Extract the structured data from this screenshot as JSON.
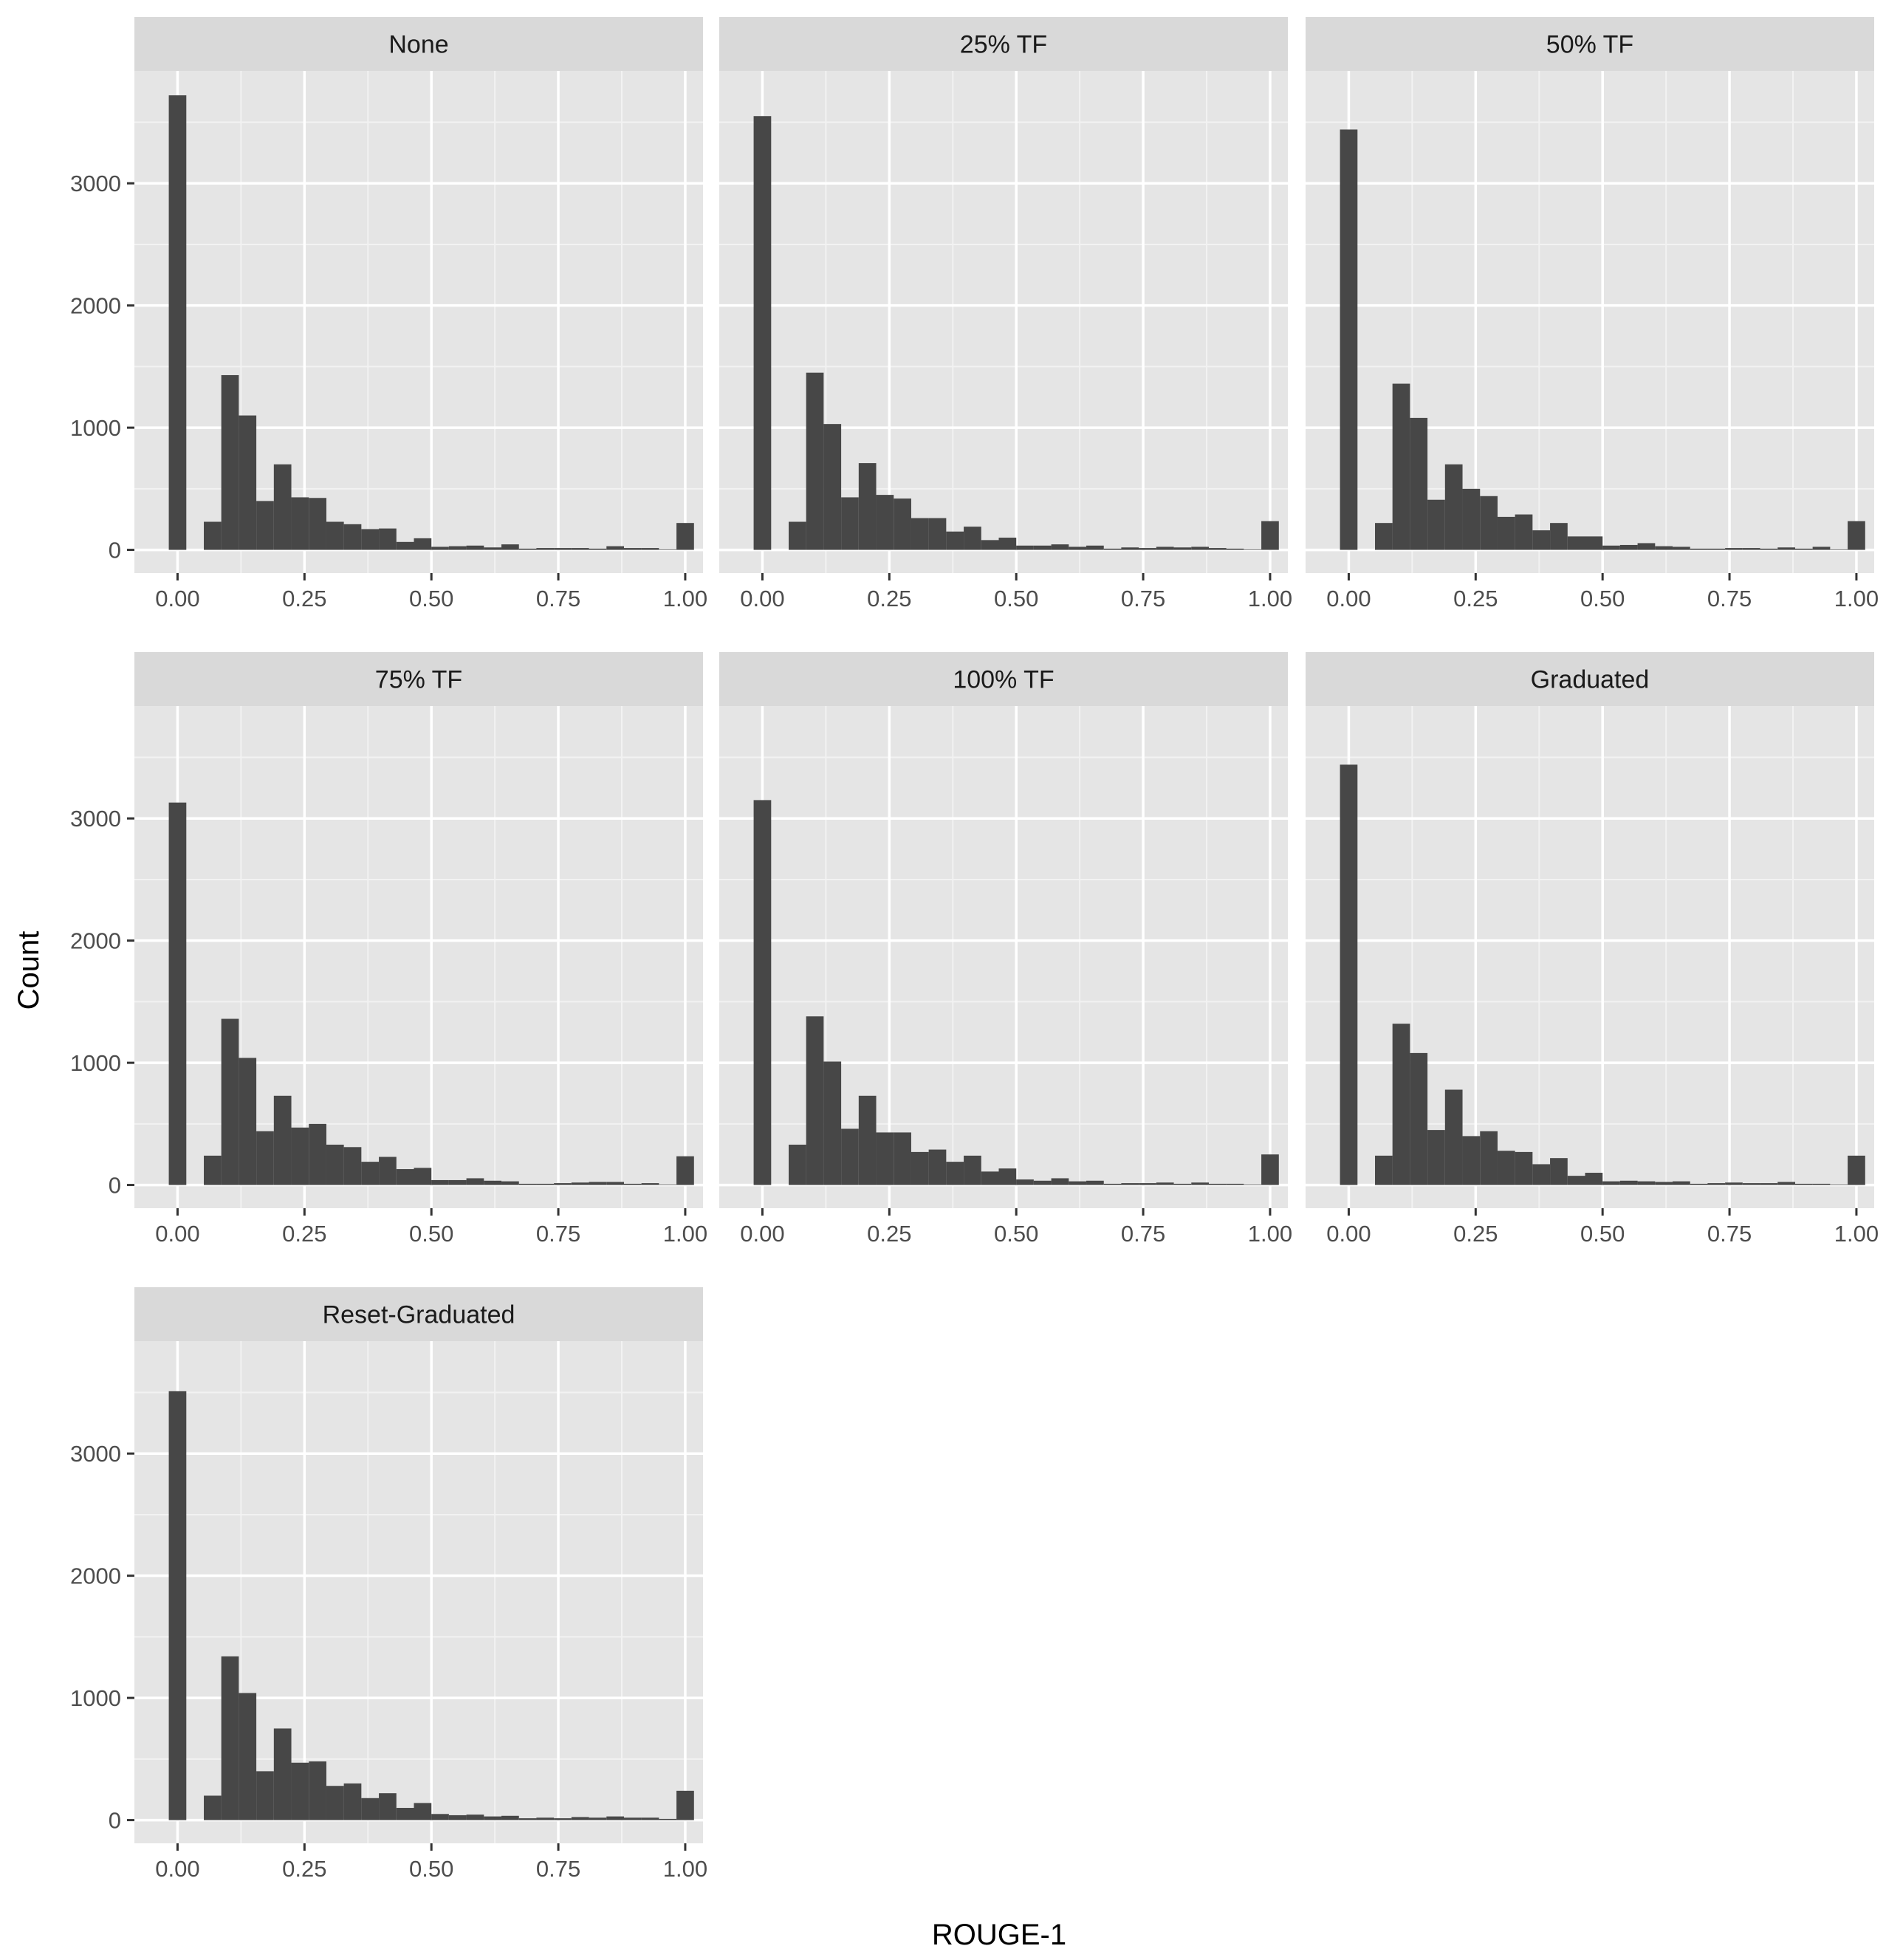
{
  "chart_data": {
    "type": "bar",
    "xlabel": "ROUGE-1",
    "ylabel": "Count",
    "x_ticks": [
      0.0,
      0.25,
      0.5,
      0.75,
      1.0
    ],
    "x_tick_labels": [
      "0.00",
      "0.25",
      "0.50",
      "0.75",
      "1.00"
    ],
    "y_ticks": [
      0,
      1000,
      2000,
      3000
    ],
    "y_tick_labels": [
      "0",
      "1000",
      "2000",
      "3000"
    ],
    "xlim": [
      -0.085,
      1.035
    ],
    "ylim": [
      -190,
      3920
    ],
    "bin_width": 0.0345,
    "bin_centers": [
      0.0,
      0.0345,
      0.069,
      0.1034,
      0.1379,
      0.1724,
      0.2069,
      0.2414,
      0.2759,
      0.3103,
      0.3448,
      0.3793,
      0.4138,
      0.4483,
      0.4828,
      0.5172,
      0.5517,
      0.5862,
      0.6207,
      0.6552,
      0.6897,
      0.7241,
      0.7586,
      0.7931,
      0.8276,
      0.8621,
      0.8966,
      0.931,
      0.9655,
      1.0
    ],
    "grid": true,
    "bar_color": "#474747",
    "panel_bg": "#e5e5e5",
    "strip_bg": "#d9d9d9",
    "panels": [
      {
        "title": "None",
        "values": [
          3720,
          0,
          230,
          1430,
          1100,
          400,
          700,
          430,
          425,
          230,
          210,
          170,
          175,
          65,
          95,
          25,
          30,
          35,
          20,
          45,
          10,
          15,
          15,
          15,
          10,
          30,
          15,
          15,
          5,
          220
        ]
      },
      {
        "title": "25% TF",
        "values": [
          3550,
          0,
          230,
          1450,
          1030,
          430,
          710,
          450,
          420,
          260,
          260,
          150,
          190,
          80,
          100,
          35,
          35,
          45,
          25,
          35,
          10,
          20,
          15,
          25,
          20,
          25,
          15,
          10,
          5,
          235
        ]
      },
      {
        "title": "50% TF",
        "values": [
          3440,
          0,
          220,
          1360,
          1080,
          410,
          700,
          500,
          440,
          270,
          290,
          160,
          220,
          110,
          110,
          35,
          40,
          55,
          30,
          25,
          10,
          10,
          15,
          15,
          10,
          20,
          10,
          25,
          5,
          235
        ]
      },
      {
        "title": "75% TF",
        "values": [
          3130,
          0,
          240,
          1360,
          1040,
          440,
          730,
          470,
          500,
          330,
          310,
          190,
          230,
          130,
          140,
          40,
          40,
          55,
          35,
          30,
          10,
          10,
          15,
          20,
          25,
          25,
          10,
          15,
          5,
          235
        ]
      },
      {
        "title": "100% TF",
        "values": [
          3150,
          0,
          330,
          1380,
          1010,
          460,
          730,
          430,
          430,
          270,
          290,
          190,
          240,
          110,
          135,
          45,
          35,
          55,
          30,
          35,
          10,
          15,
          15,
          20,
          10,
          20,
          10,
          10,
          5,
          250
        ]
      },
      {
        "title": "Graduated",
        "values": [
          3440,
          0,
          240,
          1320,
          1080,
          450,
          780,
          400,
          440,
          280,
          270,
          170,
          220,
          75,
          100,
          30,
          35,
          30,
          25,
          30,
          10,
          15,
          20,
          15,
          15,
          25,
          10,
          10,
          5,
          240
        ]
      },
      {
        "title": "Reset-Graduated",
        "values": [
          3510,
          0,
          200,
          1340,
          1040,
          400,
          750,
          470,
          480,
          280,
          300,
          180,
          220,
          100,
          140,
          50,
          40,
          45,
          30,
          35,
          15,
          20,
          15,
          25,
          20,
          30,
          20,
          20,
          10,
          240
        ]
      }
    ]
  }
}
